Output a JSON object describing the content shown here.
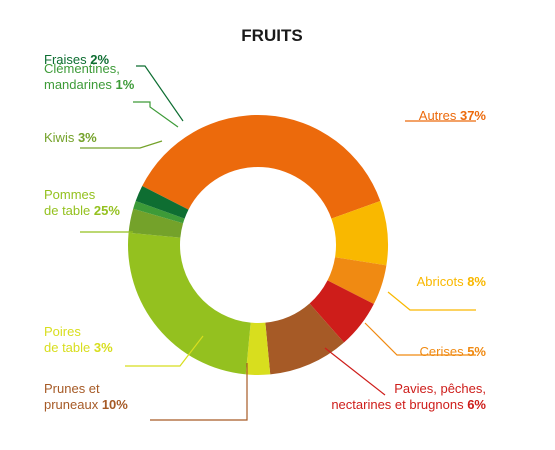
{
  "chart_data": {
    "type": "pie",
    "title": "FRUITS",
    "slices": [
      {
        "lines": [
          "Autres"
        ],
        "value": 37,
        "value_label": "37%",
        "color": "#EC6A0C"
      },
      {
        "lines": [
          "Abricots"
        ],
        "value": 8,
        "value_label": "8%",
        "color": "#F9B800"
      },
      {
        "lines": [
          "Cerises"
        ],
        "value": 5,
        "value_label": "5%",
        "color": "#F08A12"
      },
      {
        "lines": [
          "Pavies, pêches,",
          "nectarines et brugnons"
        ],
        "value": 6,
        "value_label": "6%",
        "color": "#CE1D1A"
      },
      {
        "lines": [
          "Prunes et",
          "pruneaux"
        ],
        "value": 10,
        "value_label": "10%",
        "color": "#A65A26"
      },
      {
        "lines": [
          "Poires",
          "de table"
        ],
        "value": 3,
        "value_label": "3%",
        "color": "#D8DE1E"
      },
      {
        "lines": [
          "Pommes",
          "de table"
        ],
        "value": 25,
        "value_label": "25%",
        "color": "#94C11F"
      },
      {
        "lines": [
          "Kiwis"
        ],
        "value": 3,
        "value_label": "3%",
        "color": "#74A22A"
      },
      {
        "lines": [
          "Clémentines,",
          "mandarines"
        ],
        "value": 1,
        "value_label": "1%",
        "color": "#3D9B38"
      },
      {
        "lines": [
          "Fraises"
        ],
        "value": 2,
        "value_label": "2%",
        "color": "#0E6E32"
      }
    ]
  }
}
